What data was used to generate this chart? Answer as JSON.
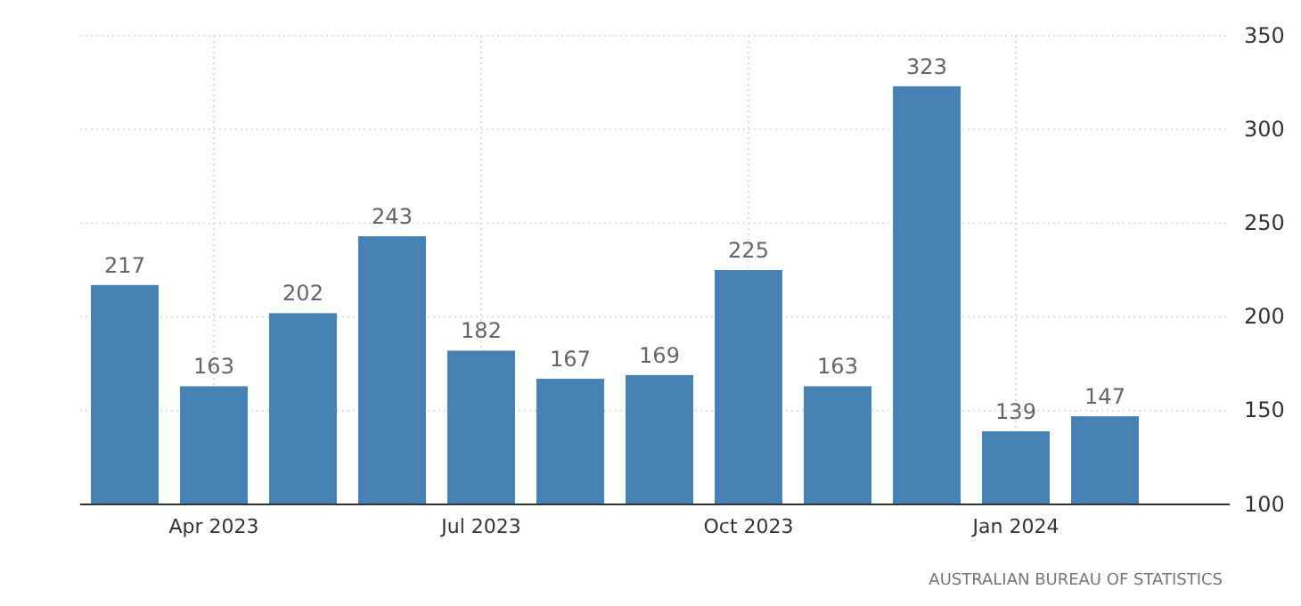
{
  "chart_data": {
    "type": "bar",
    "categories": [
      null,
      "Apr 2023",
      null,
      null,
      "Jul 2023",
      null,
      null,
      "Oct 2023",
      null,
      null,
      "Jan 2024",
      null
    ],
    "values": [
      217,
      163,
      202,
      243,
      182,
      167,
      169,
      225,
      163,
      323,
      139,
      147
    ],
    "color": "#4682b4",
    "ylim": [
      100,
      350
    ],
    "yticks": [
      100,
      150,
      200,
      250,
      300,
      350
    ],
    "grid": true,
    "data_labels": true,
    "annotations": [
      "AUSTRALIAN BUREAU OF STATISTICS"
    ]
  }
}
